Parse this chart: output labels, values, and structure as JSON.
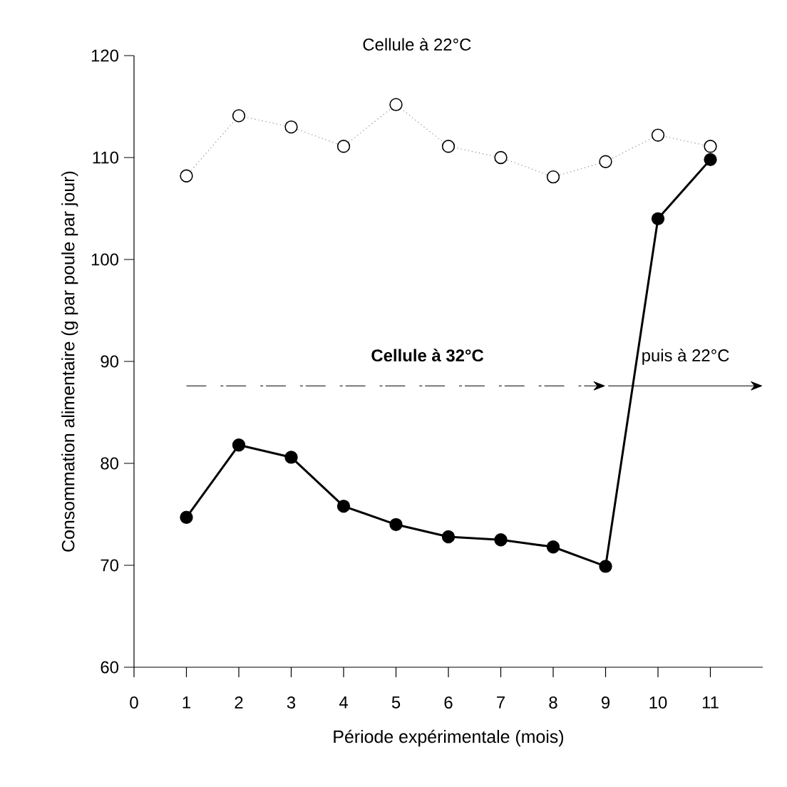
{
  "chart_data": {
    "type": "line",
    "xlabel": "Période expérimentale (mois)",
    "ylabel": "Consommation alimentaire (g par poule par jour)",
    "x": [
      1,
      2,
      3,
      4,
      5,
      6,
      7,
      8,
      9,
      10,
      11
    ],
    "series": [
      {
        "name": "Cellule à 22°C",
        "color": "#000000",
        "line_style": "dotted",
        "values": [
          108.2,
          114.1,
          113.0,
          111.1,
          115.2,
          111.1,
          110.0,
          108.1,
          109.6,
          112.2,
          111.1
        ]
      },
      {
        "color": "#000000",
        "line_style": "solid",
        "values": [
          74.7,
          81.8,
          80.6,
          75.8,
          74.0,
          72.8,
          72.5,
          71.8,
          69.9,
          104.0,
          109.8
        ]
      }
    ],
    "annotations": [
      "Cellule à 32°C",
      "puis à 22°C"
    ],
    "marker": "circle",
    "grid": false,
    "xlim": [
      0,
      12
    ],
    "ylim": [
      60,
      120
    ],
    "xticks": [
      0,
      1,
      2,
      3,
      4,
      5,
      6,
      7,
      8,
      9,
      10,
      11
    ],
    "yticks": [
      60,
      70,
      80,
      90,
      100,
      110,
      120
    ]
  }
}
